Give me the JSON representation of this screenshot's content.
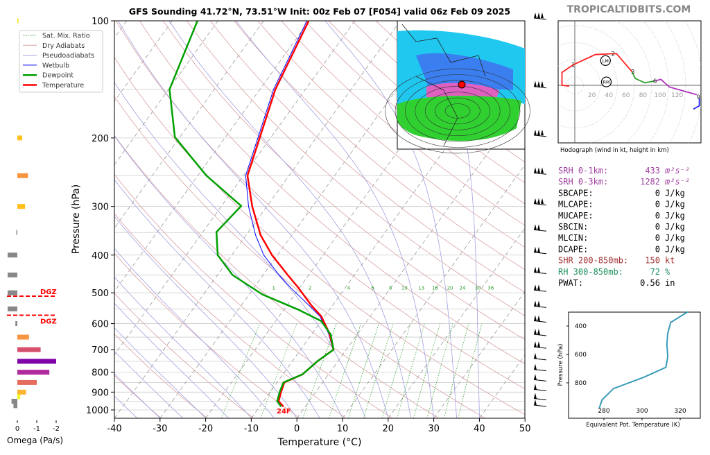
{
  "title": "GFS Sounding 41.72°N, 73.51°W Init: 00z Feb 07 [F054] valid 06z Feb 09 2025",
  "watermark": "TROPICALTIDBITS.COM",
  "legend": [
    {
      "label": "Sat. Mix. Ratio",
      "color": "#2ca02c",
      "style": "dotted"
    },
    {
      "label": "Dry Adiabats",
      "color": "#d9a0a0",
      "style": "solid"
    },
    {
      "label": "Pseudoadiabats",
      "color": "#a0a0e0",
      "style": "solid"
    },
    {
      "label": "Wetbulb",
      "color": "#0000ff",
      "style": "solid"
    },
    {
      "label": "Dewpoint",
      "color": "#00a000",
      "style": "thick"
    },
    {
      "label": "Temperature",
      "color": "#ff0000",
      "style": "thick"
    }
  ],
  "stats": [
    {
      "label": "SRH 0-1km:",
      "value": "433",
      "unit": "m²s⁻²",
      "color": "#a040a0"
    },
    {
      "label": "SRH 0-3km:",
      "value": "1282",
      "unit": "m²s⁻²",
      "color": "#a040a0"
    },
    {
      "label": "SBCAPE:",
      "value": "0",
      "unit": "J/kg",
      "color": "#000000"
    },
    {
      "label": "MLCAPE:",
      "value": "0",
      "unit": "J/kg",
      "color": "#000000"
    },
    {
      "label": "MUCAPE:",
      "value": "0",
      "unit": "J/kg",
      "color": "#000000"
    },
    {
      "label": "SBCIN:",
      "value": "0",
      "unit": "J/kg",
      "color": "#000000"
    },
    {
      "label": "MLCIN:",
      "value": "0",
      "unit": "J/kg",
      "color": "#000000"
    },
    {
      "label": "DCAPE:",
      "value": "0",
      "unit": "J/kg",
      "color": "#000000"
    },
    {
      "label": "SHR 200-850mb:",
      "value": "150",
      "unit": "kt",
      "color": "#a03030"
    },
    {
      "label": "RH 300-850mb:",
      "value": "72",
      "unit": "%",
      "color": "#209060"
    },
    {
      "label": "PWAT:",
      "value": "0.56",
      "unit": "in",
      "color": "#000000"
    }
  ],
  "chart_data": [
    {
      "type": "line",
      "name": "skew-t",
      "xlabel": "Temperature (°C)",
      "ylabel": "Pressure (hPa)",
      "xlim": [
        -40,
        50
      ],
      "ylim": [
        1050,
        100
      ],
      "yscale": "log",
      "xticks": [
        -40,
        -30,
        -20,
        -10,
        0,
        10,
        20,
        30,
        40,
        50
      ],
      "yticks": [
        100,
        200,
        300,
        400,
        500,
        600,
        700,
        800,
        900,
        1000
      ],
      "mixing_ratio_labels": [
        1,
        2,
        4,
        6,
        8,
        10,
        13,
        16,
        20,
        24,
        30,
        36
      ],
      "surface_label": "24F",
      "dgz_label": "DGZ",
      "dgz_bounds_hPa": [
        510,
        571
      ],
      "series": [
        {
          "name": "Temperature",
          "color": "#ff0000",
          "points": [
            [
              100,
              -60.1
            ],
            [
              150,
              -56.6
            ],
            [
              250,
              -49.1
            ],
            [
              300,
              -43.2
            ],
            [
              355,
              -36.9
            ],
            [
              400,
              -31.2
            ],
            [
              450,
              -24.6
            ],
            [
              485,
              -20.3
            ],
            [
              540,
              -14.5
            ],
            [
              575,
              -10.7
            ],
            [
              635,
              -6.3
            ],
            [
              700,
              -2.8
            ],
            [
              750,
              -4.5
            ],
            [
              810,
              -5.7
            ],
            [
              850,
              -8.4
            ],
            [
              900,
              -7.6
            ],
            [
              950,
              -6.7
            ],
            [
              980,
              -4.8
            ]
          ]
        },
        {
          "name": "Wetbulb",
          "color": "#0000ff",
          "points": [
            [
              100,
              -60.5
            ],
            [
              150,
              -57
            ],
            [
              250,
              -49.5
            ],
            [
              300,
              -44
            ],
            [
              355,
              -38
            ],
            [
              400,
              -33
            ],
            [
              450,
              -26.5
            ],
            [
              485,
              -22
            ],
            [
              540,
              -15
            ],
            [
              575,
              -11
            ],
            [
              635,
              -6.5
            ],
            [
              700,
              -2.9
            ],
            [
              750,
              -4.6
            ],
            [
              810,
              -5.8
            ],
            [
              850,
              -8.5
            ],
            [
              900,
              -7.7
            ],
            [
              950,
              -6.8
            ],
            [
              980,
              -5
            ]
          ]
        },
        {
          "name": "Dewpoint",
          "color": "#00a000",
          "points": [
            [
              100,
              -84.5
            ],
            [
              150,
              -79.8
            ],
            [
              199,
              -71.1
            ],
            [
              250,
              -58.1
            ],
            [
              299,
              -45.7
            ],
            [
              349,
              -47
            ],
            [
              400,
              -43.1
            ],
            [
              450,
              -36.7
            ],
            [
              505,
              -27.1
            ],
            [
              553,
              -16.7
            ],
            [
              591,
              -10
            ],
            [
              640,
              -5.8
            ],
            [
              700,
              -2.8
            ],
            [
              750,
              -4.5
            ],
            [
              810,
              -5.7
            ],
            [
              850,
              -8.6
            ],
            [
              900,
              -7.9
            ],
            [
              950,
              -7
            ],
            [
              980,
              -5.3
            ]
          ]
        }
      ],
      "wind_barb_levels_hPa": [
        100,
        150,
        200,
        250,
        300,
        350,
        400,
        450,
        500,
        550,
        600,
        650,
        700,
        750,
        800,
        850,
        900,
        950,
        1000
      ]
    },
    {
      "type": "bar",
      "name": "omega",
      "xlabel": "Omega (Pa/s)",
      "xticks": [
        0,
        -1,
        -2
      ],
      "orientation": "horizontal",
      "levels_hPa": [
        100,
        200,
        250,
        300,
        350,
        400,
        450,
        500,
        550,
        600,
        650,
        700,
        750,
        800,
        850,
        900,
        925,
        950,
        975
      ],
      "values": [
        -0.05,
        -0.25,
        -0.55,
        -0.4,
        0.05,
        0.5,
        0.5,
        0.5,
        0.5,
        0.1,
        -0.6,
        -1.2,
        -2.0,
        -1.65,
        -1.0,
        -0.45,
        -0.15,
        0.3,
        0.2
      ],
      "colors": [
        "#f0e000",
        "#ffc020",
        "#f89540",
        "#ffc020",
        "#888888",
        "#888888",
        "#888888",
        "#888888",
        "#888888",
        "#888888",
        "#f89540",
        "#d6506e",
        "#7e03a8",
        "#b02a9e",
        "#e66d5e",
        "#fdb42f",
        "#f0f921",
        "#888888",
        "#888888"
      ]
    },
    {
      "type": "line",
      "name": "hodograph",
      "xlabel": "Hodograph (wind in kt, height in km)",
      "ring_labels": [
        20,
        40,
        60,
        80,
        100,
        120
      ],
      "segments": [
        {
          "color": "#ff2020",
          "uv": [
            [
              -6.5,
              -1
            ],
            [
              -15,
              0
            ],
            [
              -15,
              15
            ],
            [
              -2,
              24
            ],
            [
              24,
              36
            ],
            [
              43,
              37
            ],
            [
              49,
              37
            ],
            [
              67,
              16
            ]
          ]
        },
        {
          "color": "#30a030",
          "uv": [
            [
              67,
              16
            ],
            [
              71,
              8
            ],
            [
              82,
              3
            ],
            [
              94,
              5
            ]
          ]
        },
        {
          "color": "#b030c0",
          "uv": [
            [
              94,
              5
            ],
            [
              101,
              7
            ],
            [
              111,
              -2
            ],
            [
              143,
              -11
            ]
          ]
        },
        {
          "color": "#2020ff",
          "uv": [
            [
              146,
              -15
            ],
            [
              146,
              -24
            ],
            [
              139,
              -28
            ]
          ]
        }
      ],
      "height_labels": [
        {
          "label": "1",
          "uv": [
            -2,
            24
          ]
        },
        {
          "label": "2",
          "uv": [
            45,
            37
          ]
        },
        {
          "label": "3",
          "uv": [
            68,
            16
          ]
        },
        {
          "label": "6",
          "uv": [
            94,
            5
          ]
        },
        {
          "label": "9",
          "uv": [
            145,
            -14
          ]
        }
      ],
      "storm_motion": [
        {
          "label": "LM",
          "uv": [
            36,
            29
          ]
        },
        {
          "label": "RM",
          "uv": [
            37,
            4
          ]
        }
      ]
    },
    {
      "type": "line",
      "name": "theta-e",
      "xlabel": "Equivalent Pot. Temperature (K)",
      "ylabel": "Pressure (hPa)",
      "xticks": [
        280,
        300,
        320
      ],
      "yticks": [
        400,
        600,
        800
      ],
      "color": "#3a9ab8",
      "points": [
        [
          300,
          324
        ],
        [
          375,
          315
        ],
        [
          450,
          313.5
        ],
        [
          530,
          313
        ],
        [
          615,
          313.5
        ],
        [
          690,
          312.5
        ],
        [
          760,
          301
        ],
        [
          840,
          285
        ],
        [
          920,
          279
        ],
        [
          980,
          277.5
        ]
      ]
    }
  ]
}
